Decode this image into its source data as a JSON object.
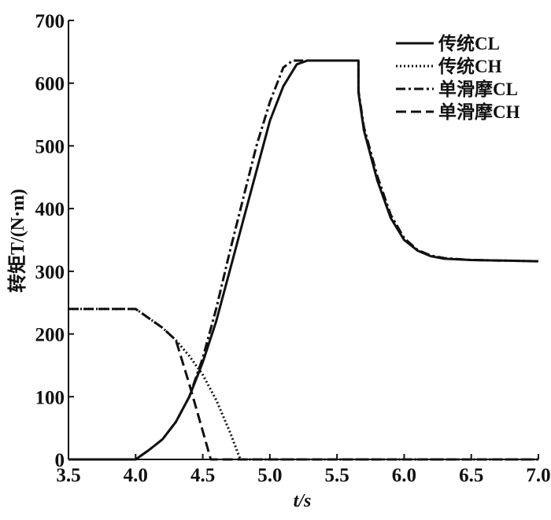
{
  "chart_data": {
    "type": "line",
    "title": "",
    "xlabel": "t/s",
    "ylabel": "转矩T/(N·m)",
    "xlim": [
      3.5,
      7.0
    ],
    "ylim": [
      0,
      700
    ],
    "xticks": [
      "3.5",
      "4.0",
      "4.5",
      "5.0",
      "5.5",
      "6.0",
      "6.5",
      "7.0"
    ],
    "yticks": [
      "0",
      "100",
      "200",
      "300",
      "400",
      "500",
      "600",
      "700"
    ],
    "grid": false,
    "legend_position": "top-right",
    "series": [
      {
        "name": "传统CL",
        "style": "solid",
        "x": [
          3.5,
          4.0,
          4.1,
          4.2,
          4.3,
          4.4,
          4.5,
          4.6,
          4.7,
          4.8,
          4.9,
          5.0,
          5.1,
          5.2,
          5.28,
          5.66,
          5.66,
          5.7,
          5.8,
          5.9,
          6.0,
          6.1,
          6.2,
          6.3,
          6.5,
          7.0
        ],
        "y": [
          0,
          0,
          15,
          32,
          60,
          100,
          155,
          220,
          300,
          380,
          460,
          540,
          595,
          630,
          636,
          636,
          585,
          525,
          445,
          385,
          350,
          333,
          324,
          320,
          318,
          316
        ]
      },
      {
        "name": "传统CH",
        "style": "dotted",
        "x": [
          3.5,
          4.0,
          4.1,
          4.2,
          4.3,
          4.4,
          4.5,
          4.6,
          4.7,
          4.78,
          7.0
        ],
        "y": [
          240,
          240,
          225,
          210,
          190,
          165,
          135,
          95,
          45,
          0,
          0
        ]
      },
      {
        "name": "单滑摩CL",
        "style": "dashdot",
        "x": [
          3.5,
          4.0,
          4.1,
          4.2,
          4.3,
          4.4,
          4.5,
          4.6,
          4.7,
          4.8,
          4.9,
          5.0,
          5.1,
          5.17,
          5.66,
          5.66,
          5.7,
          5.8,
          5.9,
          6.0,
          6.1,
          6.2,
          6.3,
          6.5,
          7.0
        ],
        "y": [
          0,
          0,
          15,
          32,
          60,
          100,
          162,
          240,
          330,
          415,
          500,
          570,
          625,
          636,
          636,
          588,
          530,
          452,
          390,
          353,
          334,
          325,
          321,
          318,
          316
        ]
      },
      {
        "name": "单滑摩CH",
        "style": "dashed",
        "x": [
          3.5,
          4.0,
          4.1,
          4.2,
          4.3,
          4.4,
          4.5,
          4.56,
          7.0
        ],
        "y": [
          240,
          240,
          225,
          210,
          190,
          120,
          45,
          0,
          0
        ]
      }
    ]
  }
}
